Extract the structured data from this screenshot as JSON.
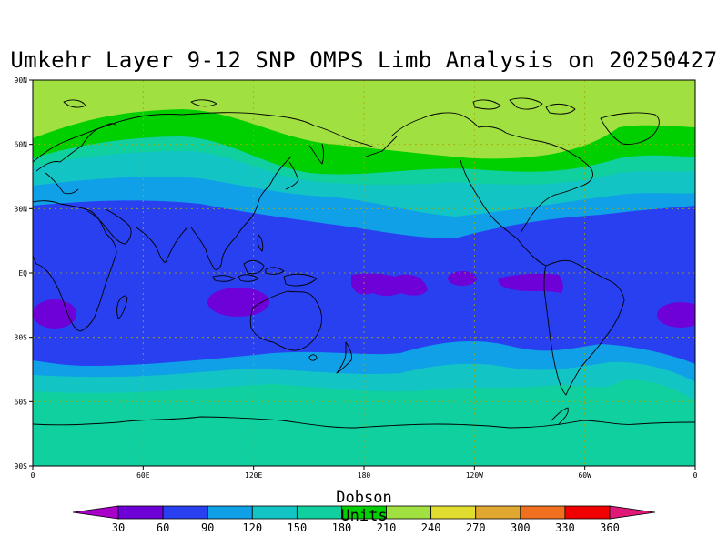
{
  "title": "Umkehr Layer 9-12 SNP OMPS Limb Analysis on 20250427",
  "lat_ticks": [
    "90N",
    "60N",
    "30N",
    "EQ",
    "30S",
    "60S",
    "90S"
  ],
  "lon_ticks": [
    "0",
    "60E",
    "120E",
    "180",
    "120W",
    "60W",
    "0"
  ],
  "colorbar": {
    "title": "Dobson Units",
    "levels": [
      "30",
      "60",
      "90",
      "120",
      "150",
      "180",
      "210",
      "240",
      "270",
      "300",
      "330",
      "360"
    ],
    "colors": [
      "#a800c8",
      "#6e00d8",
      "#2840f0",
      "#10a0e8",
      "#12c4c4",
      "#10d0a0",
      "#00d000",
      "#a0e040",
      "#e0dc30",
      "#e0a830",
      "#f07020",
      "#f00000",
      "#e01878"
    ]
  },
  "field_bands": [
    {
      "name": "band-210-240",
      "value_range": [
        210,
        240
      ],
      "color": "#a0e040"
    },
    {
      "name": "band-180-210",
      "value_range": [
        180,
        210
      ],
      "color": "#00d000"
    },
    {
      "name": "band-150-180",
      "value_range": [
        150,
        180
      ],
      "color": "#10d0a0"
    },
    {
      "name": "band-120-150",
      "value_range": [
        120,
        150
      ],
      "color": "#12c4c4"
    },
    {
      "name": "band-90-120",
      "value_range": [
        90,
        120
      ],
      "color": "#10a0e8"
    },
    {
      "name": "band-60-90",
      "value_range": [
        60,
        90
      ],
      "color": "#2840f0"
    },
    {
      "name": "band-30-60",
      "value_range": [
        30,
        60
      ],
      "color": "#6e00d8"
    }
  ]
}
